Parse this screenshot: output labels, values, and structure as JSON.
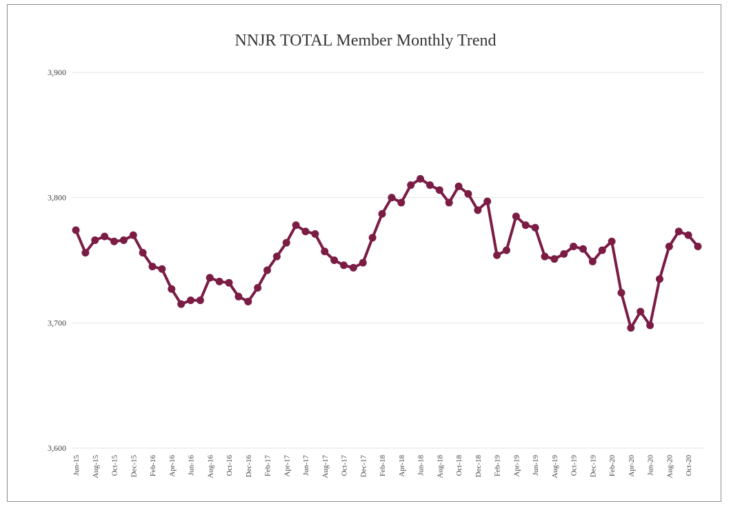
{
  "chart_data": {
    "type": "line",
    "title": "NNJR TOTAL Member Monthly Trend",
    "xlabel": "",
    "ylabel": "",
    "ylim": [
      3600,
      3900
    ],
    "yticks": [
      3600,
      3700,
      3800,
      3900
    ],
    "ytick_labels": [
      "3,600",
      "3,700",
      "3,800",
      "3,900"
    ],
    "grid": true,
    "legend": "none",
    "color": "#7b1c45",
    "x": [
      "Jun-15",
      "Jul-15",
      "Aug-15",
      "Sep-15",
      "Oct-15",
      "Nov-15",
      "Dec-15",
      "Jan-16",
      "Feb-16",
      "Mar-16",
      "Apr-16",
      "May-16",
      "Jun-16",
      "Jul-16",
      "Aug-16",
      "Sep-16",
      "Oct-16",
      "Nov-16",
      "Dec-16",
      "Jan-17",
      "Feb-17",
      "Mar-17",
      "Apr-17",
      "May-17",
      "Jun-17",
      "Jul-17",
      "Aug-17",
      "Sep-17",
      "Oct-17",
      "Nov-17",
      "Dec-17",
      "Jan-18",
      "Feb-18",
      "Mar-18",
      "Apr-18",
      "May-18",
      "Jun-18",
      "Jul-18",
      "Aug-18",
      "Sep-18",
      "Oct-18",
      "Nov-18",
      "Dec-18",
      "Jan-19",
      "Feb-19",
      "Mar-19",
      "Apr-19",
      "May-19",
      "Jun-19",
      "Jul-19",
      "Aug-19",
      "Sep-19",
      "Oct-19",
      "Nov-19",
      "Dec-19",
      "Jan-20",
      "Feb-20",
      "Mar-20",
      "Apr-20",
      "May-20",
      "Jun-20",
      "Jul-20",
      "Aug-20",
      "Sep-20",
      "Oct-20",
      "Nov-20"
    ],
    "tick_labels": [
      "Jun-15",
      "Aug-15",
      "Oct-15",
      "Dec-15",
      "Feb-16",
      "Apr-16",
      "Jun-16",
      "Aug-16",
      "Oct-16",
      "Dec-16",
      "Feb-17",
      "Apr-17",
      "Jun-17",
      "Aug-17",
      "Oct-17",
      "Dec-17",
      "Feb-18",
      "Apr-18",
      "Jun-18",
      "Aug-18",
      "Oct-18",
      "Dec-18",
      "Feb-19",
      "Apr-19",
      "Jun-19",
      "Aug-19",
      "Oct-19",
      "Dec-19",
      "Feb-20",
      "Apr-20",
      "Jun-20",
      "Aug-20",
      "Oct-20"
    ],
    "values": [
      3774,
      3756,
      3766,
      3769,
      3765,
      3766,
      3770,
      3756,
      3745,
      3743,
      3727,
      3715,
      3718,
      3718,
      3736,
      3733,
      3732,
      3721,
      3717,
      3728,
      3742,
      3753,
      3764,
      3778,
      3773,
      3771,
      3757,
      3750,
      3746,
      3744,
      3748,
      3768,
      3787,
      3800,
      3796,
      3810,
      3815,
      3810,
      3806,
      3796,
      3809,
      3803,
      3790,
      3797,
      3754,
      3758,
      3785,
      3778,
      3776,
      3753,
      3751,
      3755,
      3761,
      3759,
      3749,
      3758,
      3765,
      3724,
      3696,
      3709,
      3698,
      3735,
      3761,
      3773,
      3770,
      3761
    ]
  }
}
